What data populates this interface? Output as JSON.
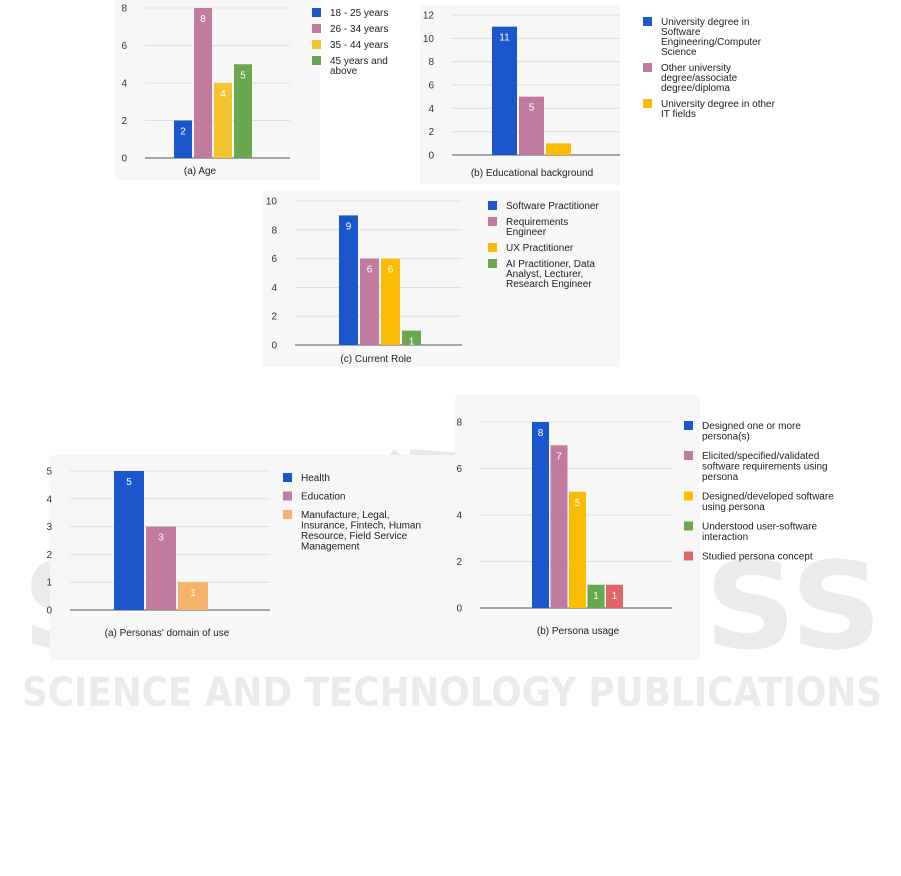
{
  "watermark": {
    "main_text": "SCITEPRESS",
    "sub_text": "SCIENCE AND TECHNOLOGY PUBLICATIONS",
    "color": "#e6e6e6"
  },
  "chart_data": [
    {
      "id": "age",
      "type": "bar",
      "caption": "(a) Age",
      "categories": [
        "18 - 25 years",
        "26 - 34 years",
        "35 - 44 years",
        "45 years and above"
      ],
      "values": [
        2,
        8,
        4,
        5
      ],
      "colors": [
        "#1a56cc",
        "#c27ba0",
        "#f4c430",
        "#6aa84f"
      ],
      "yticks": [
        "0",
        "2",
        "4",
        "6",
        "8"
      ],
      "ylim": [
        0,
        8
      ],
      "grid": true,
      "legend": [
        "18 - 25 years",
        "26 - 34 years",
        "35 - 44 years",
        "45 years and\nabove"
      ],
      "legend_placement": "right"
    },
    {
      "id": "education",
      "type": "bar",
      "caption": "(b) Educational background",
      "categories": [
        "University degree in Software Engineering/Computer Science",
        "Other university degree/associate degree/diploma",
        "University degree in other IT fields"
      ],
      "values": [
        11,
        5,
        1
      ],
      "value_labels": [
        "11",
        "5",
        ""
      ],
      "colors": [
        "#1a56cc",
        "#c27ba0",
        "#fbbc04"
      ],
      "yticks": [
        "0",
        "2",
        "4",
        "6",
        "8",
        "10",
        "12"
      ],
      "ylim": [
        0,
        12
      ],
      "grid": true,
      "legend": [
        "University degree in\nSoftware\nEngineering/Computer\nScience",
        "Other university\ndegree/associate\ndegree/diploma",
        "University degree in other\nIT fields"
      ],
      "legend_placement": "right"
    },
    {
      "id": "role",
      "type": "bar",
      "caption": "(c) Current Role",
      "categories": [
        "Software Practitioner",
        "Requirements Engineer",
        "UX Practitioner",
        "AI Practitioner, Data Analyst, Lecturer, Research Engineer"
      ],
      "values": [
        9,
        6,
        6,
        1
      ],
      "colors": [
        "#1a56cc",
        "#c27ba0",
        "#fbbc04",
        "#6aa84f"
      ],
      "yticks": [
        "0",
        "2",
        "4",
        "6",
        "8",
        "10"
      ],
      "ylim": [
        0,
        10
      ],
      "grid": true,
      "legend": [
        "Software Practitioner",
        "Requirements\nEngineer",
        "UX Practitioner",
        "AI Practitioner, Data\nAnalyst, Lecturer,\nResearch Engineer"
      ],
      "legend_placement": "right"
    },
    {
      "id": "domain",
      "type": "bar",
      "caption": "(a) Personas' domain of use",
      "categories": [
        "Health",
        "Education",
        "Manufacture, Legal, Insurance, Fintech, Human Resource, Field Service Management"
      ],
      "values": [
        5,
        3,
        1
      ],
      "colors": [
        "#1a56cc",
        "#c27ba0",
        "#f6b26b"
      ],
      "yticks": [
        "0",
        "1",
        "2",
        "3",
        "4",
        "5"
      ],
      "ylim": [
        0,
        5
      ],
      "grid": true,
      "legend": [
        "Health",
        "Education",
        "Manufacture, Legal,\nInsurance, Fintech, Human\nResource, Field Service\nManagement"
      ],
      "legend_placement": "right"
    },
    {
      "id": "usage",
      "type": "bar",
      "caption": "(b) Persona usage",
      "categories": [
        "Designed one or more persona(s)",
        "Elicited/specified/validated software requirements using persona",
        "Designed/developed software using persona",
        "Understood user-software interaction",
        "Studied persona concept"
      ],
      "values": [
        8,
        7,
        5,
        1,
        1
      ],
      "colors": [
        "#1a56cc",
        "#c27ba0",
        "#fbbc04",
        "#6aa84f",
        "#e06666"
      ],
      "yticks": [
        "0",
        "2",
        "4",
        "6",
        "8"
      ],
      "ylim": [
        0,
        8
      ],
      "grid": true,
      "legend": [
        "Designed one or more\npersona(s)",
        "Elicited/specified/validated\nsoftware requirements using\npersona",
        "Designed/developed software\nusing persona",
        "Understood user-software\ninteraction",
        "Studied persona concept"
      ],
      "legend_placement": "right"
    }
  ]
}
